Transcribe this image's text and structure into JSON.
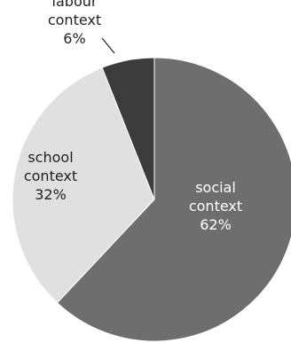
{
  "chart_data": {
    "type": "pie",
    "title": "",
    "slices": [
      {
        "name": "social context",
        "value": 62,
        "label_lines": [
          "social",
          "context",
          "62%"
        ],
        "color": "#6e6e6e",
        "label_color": "#ffffff"
      },
      {
        "name": "school context",
        "value": 32,
        "label_lines": [
          "school",
          "context",
          "32%"
        ],
        "color": "#e0e0e0",
        "label_color": "#222222"
      },
      {
        "name": "labour context",
        "value": 6,
        "label_lines": [
          "labour",
          "context",
          "6%"
        ],
        "color": "#3c3c3c",
        "label_color": "#222222"
      }
    ],
    "start_angle_deg": 0,
    "direction": "clockwise",
    "legend": "none"
  }
}
